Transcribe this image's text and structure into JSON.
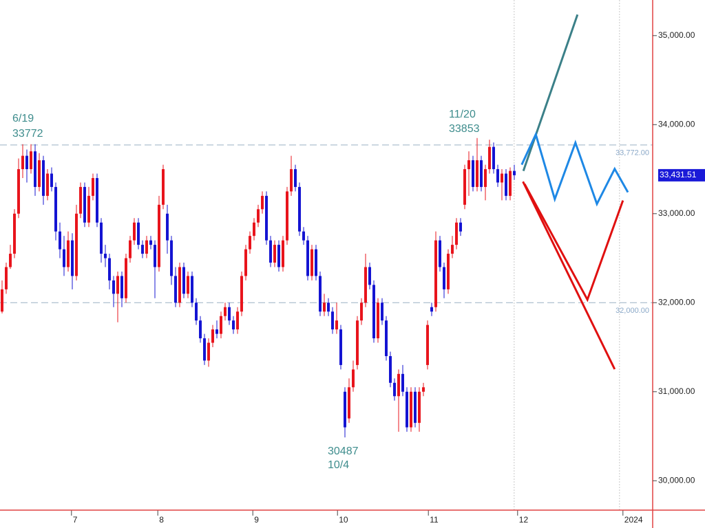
{
  "chart_data": {
    "type": "candlestick",
    "xlim": [
      -0.5,
      157.5
    ],
    "ylim": [
      29670,
      35400
    ],
    "up_color": "#e8141c",
    "down_color": "#1414d2",
    "xticks": [
      {
        "value": 16.8,
        "label": "7"
      },
      {
        "value": 37.7,
        "label": "8"
      },
      {
        "value": 60.7,
        "label": "9"
      },
      {
        "value": 81.2,
        "label": "10"
      },
      {
        "value": 103.2,
        "label": "11"
      },
      {
        "value": 124.8,
        "label": "12",
        "dashed": true
      },
      {
        "value": 150.3,
        "label": "2024",
        "dashed": true
      }
    ],
    "yticks": [
      {
        "value": 30000,
        "label": "30,000.00"
      },
      {
        "value": 31000,
        "label": "31,000.00"
      },
      {
        "value": 32000,
        "label": "32,000.00"
      },
      {
        "value": 33000,
        "label": "33,000.00"
      },
      {
        "value": 34000,
        "label": "34,000.00"
      },
      {
        "value": 35000,
        "label": "35,000.00"
      }
    ],
    "hlines": [
      {
        "value": 33772,
        "label": "33,772.00"
      },
      {
        "value": 32000,
        "label": "32,000.00"
      }
    ],
    "last_price": {
      "value": 33431.51,
      "label": "33,431.51"
    },
    "annotations": [
      {
        "date": "6/19",
        "price": 33772
      },
      {
        "date": "11/20",
        "price": 33853
      },
      {
        "date": "10/4",
        "price": 30487
      }
    ],
    "open": [
      31900,
      32150,
      32400,
      32550,
      33000,
      33500,
      33650,
      33500,
      33700,
      33300,
      33600,
      33200,
      33450,
      33300,
      32800,
      32600,
      32400,
      32700,
      32300,
      33000,
      33300,
      32900,
      33200,
      33400,
      32900,
      32550,
      32500,
      32250,
      32100,
      32300,
      32050,
      32500,
      32700,
      32900,
      32650,
      32550,
      32700,
      32650,
      32400,
      33100,
      33000,
      32700,
      32300,
      32000,
      32400,
      32100,
      32300,
      32000,
      31800,
      31600,
      31350,
      31550,
      31700,
      31650,
      31850,
      31950,
      31800,
      31700,
      31900,
      32300,
      32600,
      32750,
      32900,
      33050,
      33200,
      32700,
      32450,
      32650,
      32400,
      32700,
      33250,
      33500,
      33300,
      32800,
      32700,
      32300,
      32600,
      32300,
      31900,
      32000,
      31900,
      31700,
      31700,
      31000,
      30700,
      31050,
      31300,
      31800,
      32000,
      32400,
      32200,
      31600,
      32000,
      31800,
      31400,
      31100,
      30950,
      31200,
      31000,
      30600,
      31000,
      30650,
      31000,
      31300,
      31950,
      31950,
      32700,
      32400,
      32150,
      32550,
      32650,
      32900,
      33100,
      33500,
      33600,
      33300,
      33600,
      33300,
      33500,
      33750,
      33500,
      33350,
      33450,
      33200,
      33480
    ],
    "high": [
      32250,
      32450,
      32650,
      33050,
      33620,
      33780,
      33720,
      33780,
      33780,
      33680,
      33650,
      33500,
      33520,
      33350,
      32900,
      32750,
      32800,
      32780,
      33100,
      33350,
      33350,
      33300,
      33450,
      33450,
      32950,
      32650,
      32550,
      32300,
      32350,
      32350,
      32550,
      32750,
      32950,
      32950,
      32700,
      32750,
      32750,
      32700,
      33200,
      33550,
      33100,
      32750,
      32400,
      32450,
      32450,
      32350,
      32350,
      32050,
      31850,
      31650,
      31600,
      31750,
      31800,
      31900,
      32000,
      32000,
      31850,
      31950,
      32350,
      32650,
      32800,
      32950,
      33100,
      33250,
      33250,
      32750,
      32700,
      32700,
      32750,
      33300,
      33650,
      33550,
      33350,
      32850,
      32750,
      32650,
      32650,
      32350,
      32100,
      32050,
      31950,
      32000,
      31750,
      31050,
      31150,
      31350,
      31850,
      32050,
      32550,
      32450,
      32250,
      32050,
      32050,
      31850,
      31450,
      31150,
      31250,
      31300,
      31050,
      31050,
      31050,
      31050,
      31100,
      31800,
      32000,
      32800,
      32750,
      32450,
      32600,
      32750,
      32950,
      32950,
      33550,
      33700,
      33650,
      33850,
      33650,
      33550,
      33830,
      33800,
      33550,
      33500,
      33500,
      33520,
      33550
    ],
    "low": [
      31880,
      32100,
      32380,
      32500,
      32950,
      33400,
      33350,
      33450,
      33200,
      33250,
      33100,
      33150,
      33250,
      32700,
      32500,
      32300,
      32350,
      32150,
      32250,
      32950,
      32850,
      32850,
      33150,
      32850,
      32450,
      32400,
      32150,
      31950,
      31780,
      31950,
      32000,
      32450,
      32650,
      32600,
      32500,
      32500,
      32600,
      32050,
      32350,
      33050,
      32550,
      32200,
      31950,
      31950,
      32050,
      32050,
      31950,
      31750,
      31550,
      31300,
      31280,
      31500,
      31600,
      31600,
      31800,
      31750,
      31650,
      31650,
      31850,
      32250,
      32550,
      32700,
      32850,
      33000,
      32650,
      32400,
      32400,
      32350,
      32350,
      32650,
      33200,
      33250,
      32750,
      32650,
      32250,
      32250,
      32250,
      31850,
      31850,
      31850,
      31650,
      31650,
      31250,
      30487,
      30650,
      31000,
      31250,
      31750,
      31950,
      32150,
      31550,
      31550,
      31750,
      31350,
      31050,
      30900,
      30550,
      30950,
      30550,
      30550,
      30600,
      30550,
      30950,
      31250,
      31850,
      31900,
      32350,
      32050,
      32100,
      32500,
      32600,
      32750,
      33050,
      33200,
      33250,
      33250,
      33250,
      33150,
      33450,
      33450,
      33300,
      33150,
      33150,
      33150,
      33380
    ],
    "close": [
      32150,
      32400,
      32550,
      33000,
      33500,
      33650,
      33500,
      33700,
      33300,
      33600,
      33200,
      33450,
      33300,
      32800,
      32600,
      32400,
      32700,
      32300,
      33000,
      33300,
      32900,
      33200,
      33400,
      32900,
      32550,
      32500,
      32250,
      32100,
      32300,
      32050,
      32500,
      32700,
      32900,
      32650,
      32550,
      32700,
      32650,
      32400,
      33100,
      33500,
      32700,
      32300,
      32000,
      32400,
      32100,
      32300,
      32000,
      31800,
      31600,
      31350,
      31550,
      31700,
      31650,
      31850,
      31950,
      31800,
      31700,
      31900,
      32300,
      32600,
      32750,
      32900,
      33050,
      33200,
      32700,
      32450,
      32650,
      32400,
      32700,
      33250,
      33500,
      33300,
      32800,
      32700,
      32300,
      32600,
      32300,
      31900,
      32000,
      31900,
      31700,
      31800,
      31300,
      30600,
      31050,
      31250,
      31800,
      32000,
      32400,
      32200,
      31600,
      32000,
      31800,
      31400,
      31100,
      30950,
      31200,
      31000,
      30600,
      31000,
      30650,
      31000,
      31050,
      31750,
      31900,
      32700,
      32400,
      32150,
      32550,
      32650,
      32900,
      32800,
      33500,
      33600,
      33300,
      33600,
      33300,
      33500,
      33750,
      33500,
      33350,
      33450,
      33200,
      33480,
      33431.51
    ],
    "scenarios": [
      {
        "color": "#3b8088",
        "x": [
          126.2,
          139.3
        ],
        "y": [
          33480,
          35236
        ]
      },
      {
        "color": "#1e88e5",
        "x": [
          125.8,
          129.2,
          133.8,
          138.8,
          144,
          148.3,
          151.5
        ],
        "y": [
          33550,
          33890,
          33163,
          33797,
          33109,
          33503,
          33241
        ]
      },
      {
        "color": "#e01010",
        "x": [
          126.5,
          141.7,
          150.3
        ],
        "y": [
          33333,
          32034,
          33148
        ]
      },
      {
        "color": "#e01010",
        "x": [
          126.1,
          148.3
        ],
        "y": [
          33360,
          31253
        ]
      }
    ]
  }
}
